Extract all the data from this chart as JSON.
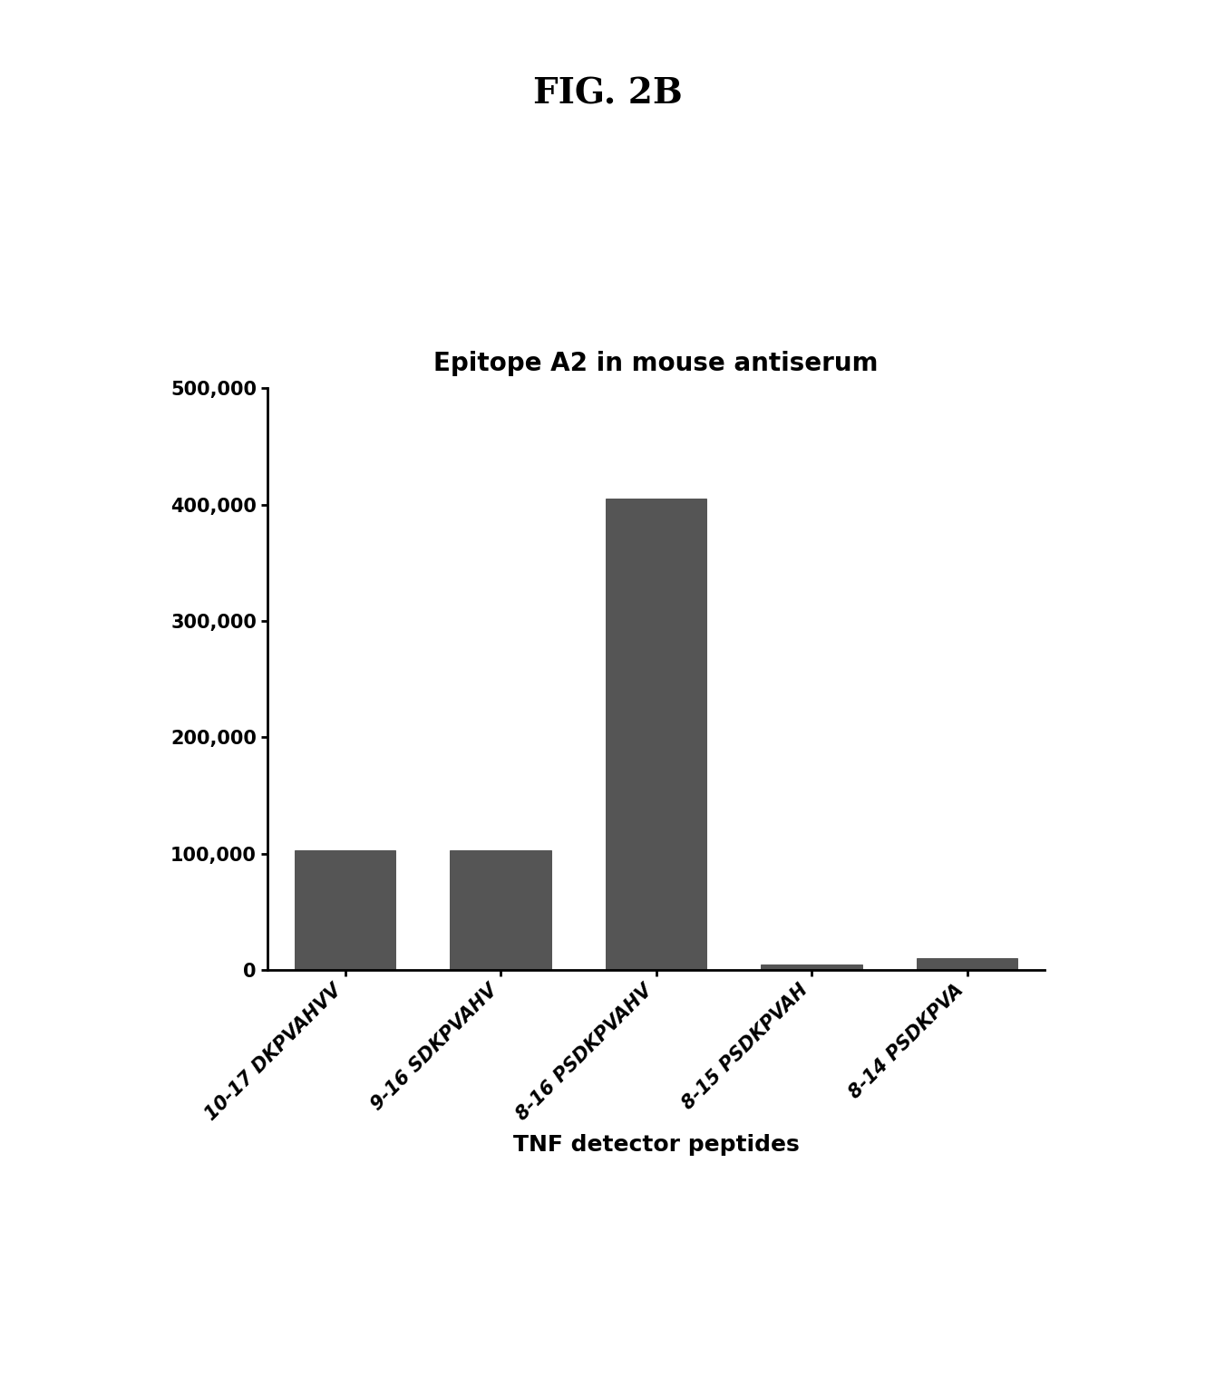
{
  "title": "Epitope A2 in mouse antiserum",
  "fig_label": "FIG. 2B",
  "categories": [
    "10-17 DKPVAHVV",
    "9-16 SDKPVAHV",
    "8-16 PSDKPVAHV",
    "8-15 PSDKPVAH",
    "8-14 PSDKPVA"
  ],
  "values": [
    103000,
    103000,
    405000,
    5000,
    10000
  ],
  "bar_color": "#555555",
  "ylim": [
    0,
    500000
  ],
  "yticks": [
    0,
    100000,
    200000,
    300000,
    400000,
    500000
  ],
  "ytick_labels": [
    "0",
    "100,000",
    "200,000",
    "300,000",
    "400,000",
    "500,000"
  ],
  "xlabel": "TNF detector peptides",
  "ylabel": "",
  "title_fontsize": 20,
  "xlabel_fontsize": 18,
  "tick_fontsize": 15,
  "background_color": "#ffffff",
  "fig_label_fontsize": 28
}
